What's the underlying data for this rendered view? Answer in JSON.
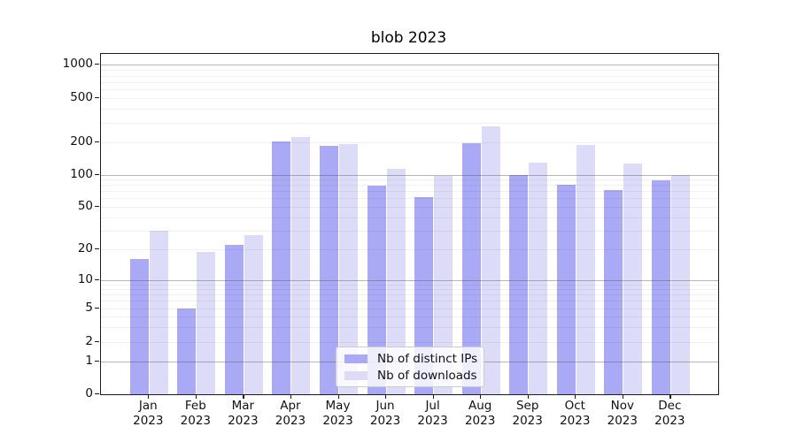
{
  "title": "blob 2023",
  "chart_data": {
    "type": "bar",
    "title": "blob 2023",
    "categories": [
      "Jan 2023",
      "Feb 2023",
      "Mar 2023",
      "Apr 2023",
      "May 2023",
      "Jun 2023",
      "Jul 2023",
      "Aug 2023",
      "Sep 2023",
      "Oct 2023",
      "Nov 2023",
      "Dec 2023"
    ],
    "series": [
      {
        "name": "Nb of distinct IPs",
        "color": "#a9a9f5",
        "values": [
          16,
          5,
          22,
          204,
          185,
          79,
          62,
          198,
          100,
          81,
          72,
          88
        ]
      },
      {
        "name": "Nb of downloads",
        "color": "#dcdcf9",
        "values": [
          30,
          19,
          27,
          222,
          192,
          114,
          97,
          277,
          130,
          190,
          127,
          100
        ]
      }
    ],
    "yscale": "log (with zero baseline, symlog-like near 0)",
    "ylim": [
      0,
      1300
    ],
    "ytick_values": [
      0,
      1,
      2,
      5,
      10,
      20,
      50,
      100,
      200,
      500,
      1000
    ],
    "ytick_labels": [
      "0",
      "1",
      "2",
      "5",
      "10",
      "20",
      "50",
      "100",
      "200",
      "500",
      "1000"
    ],
    "grid": "horizontal, major (decades) dark + minor light",
    "legend_position": "lower center inside plot",
    "legend_entries": [
      "Nb of distinct IPs",
      "Nb of downloads"
    ]
  },
  "axis": {
    "major_grid_values": [
      1,
      10,
      100,
      1000
    ],
    "minor_grid_values": [
      2,
      5,
      20,
      50,
      200,
      500,
      3,
      4,
      6,
      7,
      8,
      9,
      30,
      40,
      60,
      70,
      80,
      90,
      300,
      400,
      600,
      700,
      800,
      900
    ]
  },
  "colors": {
    "bar_distinct_ips": "#a9a9f5",
    "bar_downloads": "#dcdcf9",
    "major_grid": "#9a9a9a",
    "minor_grid": "#e9e9e9",
    "spine": "#1a1a1a",
    "text": "#111111",
    "background": "#ffffff"
  }
}
